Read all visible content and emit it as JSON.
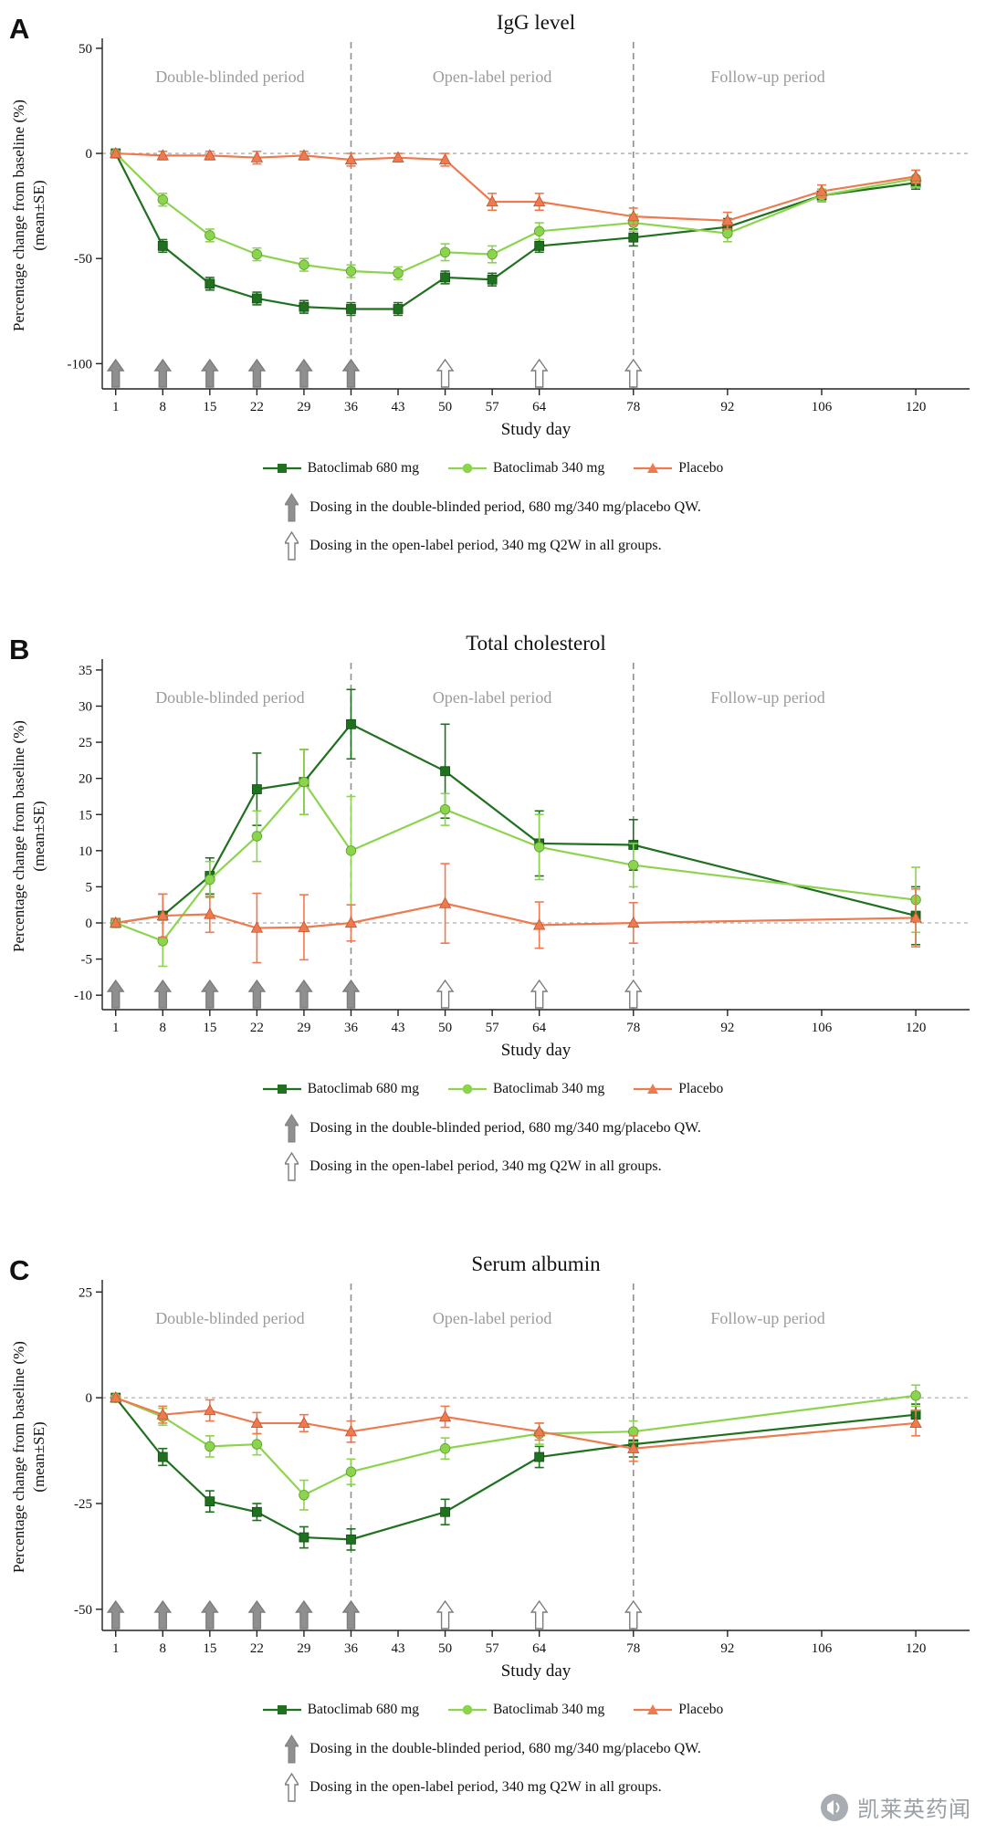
{
  "watermark": {
    "text": "凯莱英药闻"
  },
  "chart_data": [
    {
      "type": "line",
      "panel_label": "A",
      "title": "IgG level",
      "ylabel": "Percentage change from baseline (%)",
      "ylabel2": "(mean±SE)",
      "xlabel": "Study day",
      "x_ticks": [
        1,
        8,
        15,
        22,
        29,
        36,
        43,
        50,
        57,
        64,
        78,
        92,
        106,
        120
      ],
      "y_ticks": [
        50,
        0,
        -50,
        -100
      ],
      "xlim": [
        -1,
        128
      ],
      "ylim": [
        -112,
        53
      ],
      "zero_line_y": 0,
      "dividers_x": [
        36,
        78
      ],
      "periods": [
        {
          "label": "Double-blinded period",
          "x": 18
        },
        {
          "label": "Open-label period",
          "x": 57
        },
        {
          "label": "Follow-up period",
          "x": 98
        }
      ],
      "dose_arrows": {
        "filled_x": [
          1,
          8,
          15,
          22,
          29,
          36
        ],
        "open_x": [
          50,
          64,
          78
        ]
      },
      "series": [
        {
          "name": "Batoclimab 680 mg",
          "color": "#1f701f",
          "marker": "square",
          "x": [
            1,
            8,
            15,
            22,
            29,
            36,
            43,
            50,
            57,
            64,
            78,
            92,
            106,
            120
          ],
          "y": [
            0,
            -44,
            -62,
            -69,
            -73,
            -74,
            -74,
            -59,
            -60,
            -44,
            -40,
            -35,
            -20,
            -14
          ],
          "se": [
            1,
            3,
            3,
            3,
            3,
            3,
            3,
            3,
            3,
            3,
            4,
            4,
            3,
            3
          ]
        },
        {
          "name": "Batoclimab 340 mg",
          "color": "#8cd44e",
          "marker": "circle",
          "x": [
            1,
            8,
            15,
            22,
            29,
            36,
            43,
            50,
            57,
            64,
            78,
            92,
            106,
            120
          ],
          "y": [
            0,
            -22,
            -39,
            -48,
            -53,
            -56,
            -57,
            -47,
            -48,
            -37,
            -33,
            -38,
            -20,
            -12
          ],
          "se": [
            1,
            3,
            3,
            3,
            3,
            3,
            3,
            4,
            4,
            4,
            4,
            4,
            3,
            4
          ]
        },
        {
          "name": "Placebo",
          "color": "#ee7a50",
          "marker": "triangle",
          "x": [
            1,
            8,
            15,
            22,
            29,
            36,
            43,
            50,
            57,
            64,
            78,
            92,
            106,
            120
          ],
          "y": [
            0,
            -1,
            -1,
            -2,
            -1,
            -3,
            -2,
            -3,
            -23,
            -23,
            -30,
            -32,
            -18,
            -11
          ],
          "se": [
            1,
            2,
            2,
            3,
            2,
            3,
            2,
            3,
            4,
            4,
            4,
            4,
            3,
            3
          ]
        }
      ],
      "notes": [
        {
          "arrow": "filled",
          "text": "Dosing in the double-blinded period, 680 mg/340 mg/placebo QW."
        },
        {
          "arrow": "open",
          "text": "Dosing in the open-label period, 340 mg Q2W in all groups."
        }
      ]
    },
    {
      "type": "line",
      "panel_label": "B",
      "title": "Total cholesterol",
      "ylabel": "Percentage change from baseline (%)",
      "ylabel2": "(mean±SE)",
      "xlabel": "Study day",
      "x_ticks": [
        1,
        8,
        15,
        22,
        29,
        36,
        43,
        50,
        57,
        64,
        78,
        92,
        106,
        120
      ],
      "y_ticks": [
        35,
        30,
        25,
        20,
        15,
        10,
        5,
        0,
        -5,
        -10
      ],
      "xlim": [
        -1,
        128
      ],
      "ylim": [
        -12,
        36
      ],
      "zero_line_y": 0,
      "dividers_x": [
        36,
        78
      ],
      "periods": [
        {
          "label": "Double-blinded period",
          "x": 18
        },
        {
          "label": "Open-label period",
          "x": 57
        },
        {
          "label": "Follow-up period",
          "x": 98
        }
      ],
      "dose_arrows": {
        "filled_x": [
          1,
          8,
          15,
          22,
          29,
          36
        ],
        "open_x": [
          50,
          64,
          78
        ]
      },
      "series": [
        {
          "name": "Batoclimab 680 mg",
          "color": "#1f701f",
          "marker": "square",
          "x": [
            1,
            8,
            15,
            22,
            29,
            36,
            50,
            64,
            78,
            120
          ],
          "y": [
            0,
            1,
            6.5,
            18.5,
            19.5,
            27.5,
            21,
            11,
            10.8,
            1
          ],
          "se": [
            0.5,
            3,
            2.5,
            5,
            4.5,
            4.8,
            6.5,
            4.5,
            3.5,
            4
          ]
        },
        {
          "name": "Batoclimab 340 mg",
          "color": "#8cd44e",
          "marker": "circle",
          "x": [
            1,
            8,
            15,
            22,
            29,
            36,
            50,
            64,
            78,
            120
          ],
          "y": [
            0,
            -2.5,
            6,
            12,
            19.5,
            10,
            15.7,
            10.5,
            8,
            3.2
          ],
          "se": [
            0.5,
            3.5,
            2.5,
            3.5,
            4.5,
            7.5,
            2.2,
            4.5,
            3,
            4.5
          ]
        },
        {
          "name": "Placebo",
          "color": "#ee7a50",
          "marker": "triangle",
          "x": [
            1,
            8,
            15,
            22,
            29,
            36,
            50,
            64,
            78,
            120
          ],
          "y": [
            0,
            1,
            1.2,
            -0.7,
            -0.6,
            0,
            2.7,
            -0.3,
            0,
            0.7
          ],
          "se": [
            0.5,
            3,
            2.5,
            4.8,
            4.5,
            2.5,
            5.5,
            3.2,
            2.8,
            4
          ]
        }
      ],
      "notes": [
        {
          "arrow": "filled",
          "text": "Dosing in the double-blinded period, 680 mg/340 mg/placebo QW."
        },
        {
          "arrow": "open",
          "text": "Dosing in the open-label period, 340 mg Q2W in all groups."
        }
      ]
    },
    {
      "type": "line",
      "panel_label": "C",
      "title": "Serum albumin",
      "ylabel": "Percentage change from baseline (%)",
      "ylabel2": "(mean±SE)",
      "xlabel": "Study day",
      "x_ticks": [
        1,
        8,
        15,
        22,
        29,
        36,
        43,
        50,
        57,
        64,
        78,
        92,
        106,
        120
      ],
      "y_ticks": [
        25,
        0,
        -25,
        -50
      ],
      "xlim": [
        -1,
        128
      ],
      "ylim": [
        -55,
        27
      ],
      "zero_line_y": 0,
      "dividers_x": [
        36,
        78
      ],
      "periods": [
        {
          "label": "Double-blinded period",
          "x": 18
        },
        {
          "label": "Open-label period",
          "x": 57
        },
        {
          "label": "Follow-up period",
          "x": 98
        }
      ],
      "dose_arrows": {
        "filled_x": [
          1,
          8,
          15,
          22,
          29,
          36
        ],
        "open_x": [
          50,
          64,
          78
        ]
      },
      "series": [
        {
          "name": "Batoclimab 680 mg",
          "color": "#1f701f",
          "marker": "square",
          "x": [
            1,
            8,
            15,
            22,
            29,
            36,
            50,
            64,
            78,
            120
          ],
          "y": [
            0,
            -14,
            -24.5,
            -27,
            -33,
            -33.5,
            -27,
            -14,
            -11,
            -4
          ],
          "se": [
            0.5,
            2,
            2.5,
            2,
            2.5,
            2.5,
            3,
            2.5,
            3,
            2.5
          ]
        },
        {
          "name": "Batoclimab 340 mg",
          "color": "#8cd44e",
          "marker": "circle",
          "x": [
            1,
            8,
            15,
            22,
            29,
            36,
            50,
            64,
            78,
            120
          ],
          "y": [
            0,
            -4.5,
            -11.5,
            -11,
            -23,
            -17.5,
            -12,
            -8.5,
            -8,
            0.5
          ],
          "se": [
            0.5,
            2,
            2.5,
            2.5,
            3.5,
            3,
            2.5,
            2.5,
            2.5,
            2.5
          ]
        },
        {
          "name": "Placebo",
          "color": "#ee7a50",
          "marker": "triangle",
          "x": [
            1,
            8,
            15,
            22,
            29,
            36,
            50,
            64,
            78,
            120
          ],
          "y": [
            0,
            -4,
            -3,
            -6,
            -6,
            -8,
            -4.5,
            -8,
            -12,
            -6
          ],
          "se": [
            0.5,
            2,
            2.5,
            2.5,
            2,
            2.5,
            2.5,
            2,
            3,
            3
          ]
        }
      ],
      "notes": [
        {
          "arrow": "filled",
          "text": "Dosing in the double-blinded period, 680 mg/340 mg/placebo QW."
        },
        {
          "arrow": "open",
          "text": "Dosing in the open-label period, 340 mg Q2W in all groups."
        }
      ]
    }
  ]
}
